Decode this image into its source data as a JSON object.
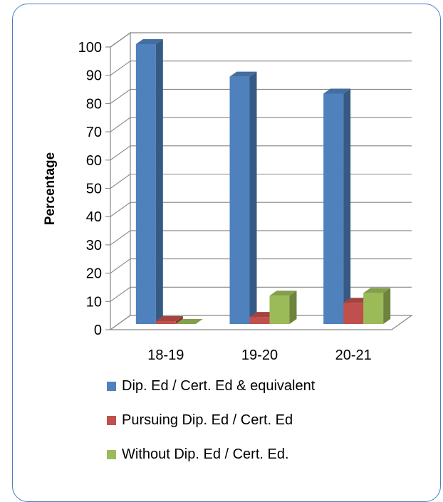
{
  "chart_data": {
    "type": "bar",
    "categories": [
      "18-19",
      "19-20",
      "20-21"
    ],
    "series": [
      {
        "name": "Dip. Ed / Cert. Ed & equivalent",
        "values": [
          99,
          87.5,
          81.5
        ],
        "color": "#4f81bd"
      },
      {
        "name": "Pursuing Dip. Ed / Cert. Ed",
        "values": [
          1,
          2.5,
          7.5
        ],
        "color": "#c0504d"
      },
      {
        "name": "Without Dip. Ed / Cert. Ed.",
        "values": [
          0,
          10,
          11
        ],
        "color": "#9bbb59"
      }
    ],
    "title": "",
    "xlabel": "",
    "ylabel": "Percentage",
    "ylim": [
      0,
      100
    ],
    "yticks": [
      "0",
      "10",
      "20",
      "30",
      "40",
      "50",
      "60",
      "70",
      "80",
      "90",
      "100"
    ],
    "grid": true,
    "legend_position": "bottom",
    "style": "3d-clustered-column"
  }
}
